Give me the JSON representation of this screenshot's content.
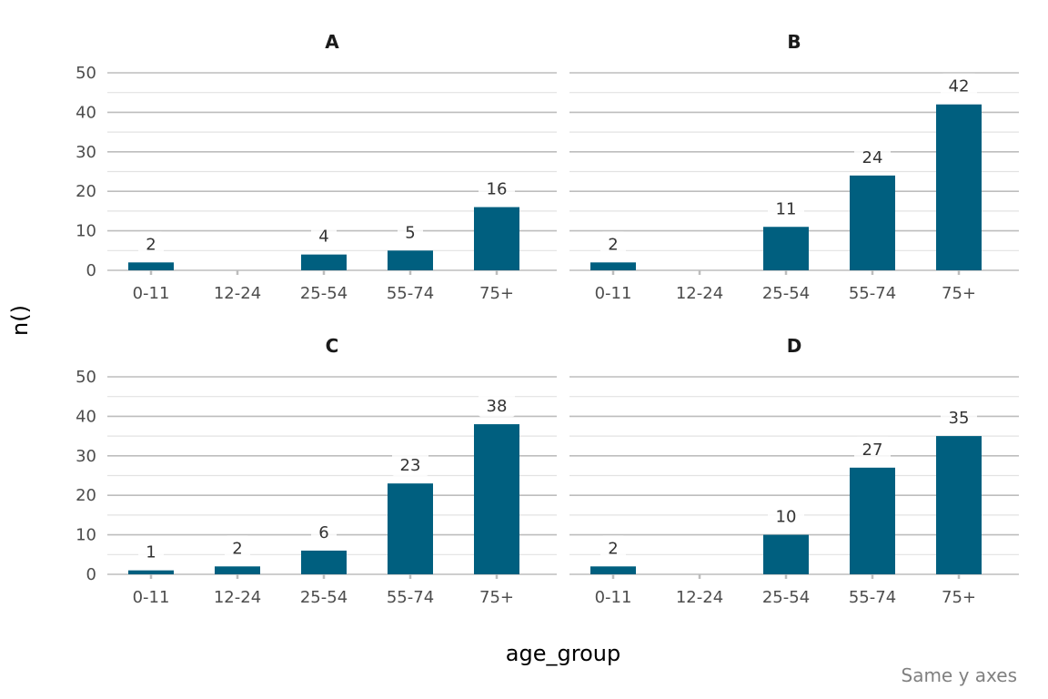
{
  "chart_data": {
    "type": "bar",
    "layout": "2x2 facets",
    "xlabel": "age_group",
    "ylabel": "n()",
    "caption": "Same y axes",
    "categories": [
      "0-11",
      "12-24",
      "25-54",
      "55-74",
      "75+"
    ],
    "ylim": [
      0,
      50
    ],
    "yticks": [
      0,
      10,
      20,
      30,
      40,
      50
    ],
    "grid": true,
    "bar_color": "#005f7f",
    "facets": [
      {
        "title": "A",
        "values": [
          2,
          null,
          4,
          5,
          16
        ]
      },
      {
        "title": "B",
        "values": [
          2,
          null,
          11,
          24,
          42
        ]
      },
      {
        "title": "C",
        "values": [
          1,
          2,
          6,
          23,
          38
        ]
      },
      {
        "title": "D",
        "values": [
          2,
          null,
          10,
          27,
          35
        ]
      }
    ]
  }
}
